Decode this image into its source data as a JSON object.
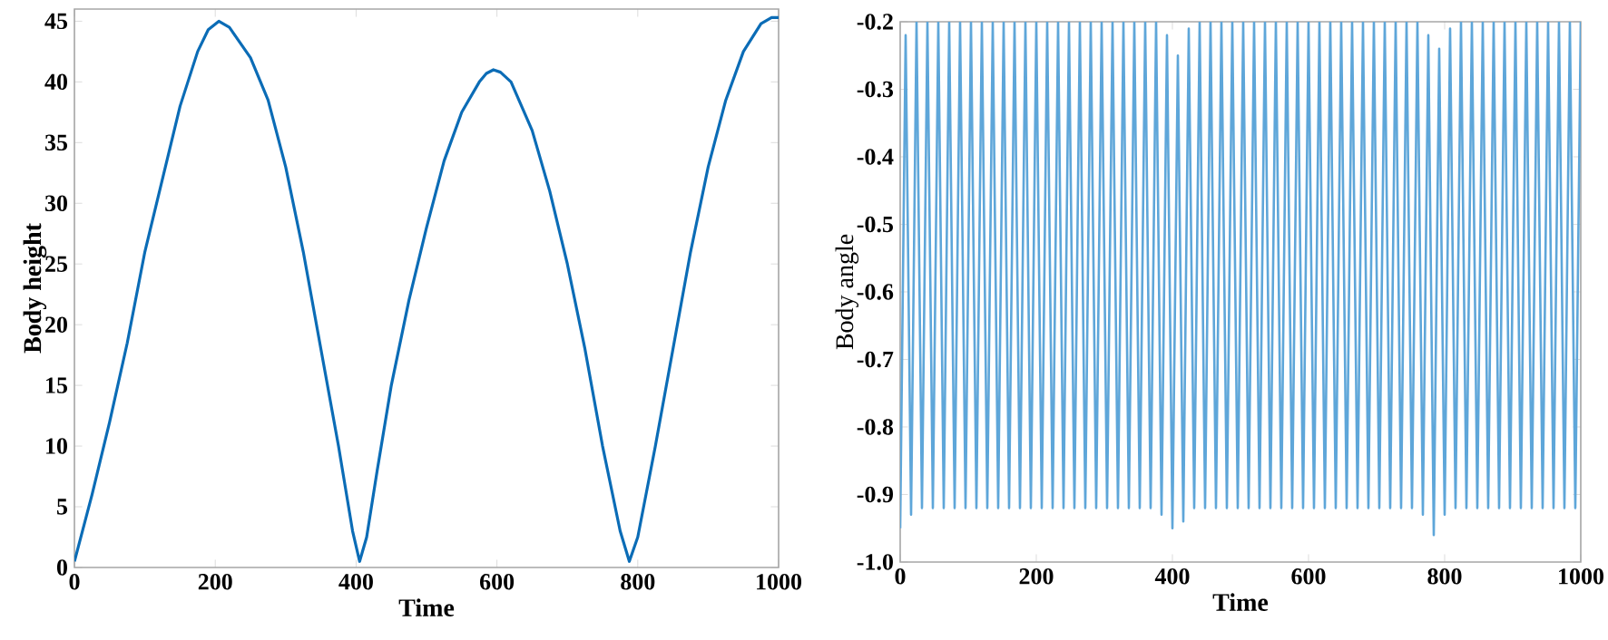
{
  "chart_data": [
    {
      "type": "line",
      "xlabel": "Time",
      "ylabel": "Body height",
      "color": "#0b6cb6",
      "grid": false,
      "marker": "none",
      "line_style": "solid",
      "xlim": [
        0,
        1000
      ],
      "ylim": [
        0,
        46
      ],
      "xticks": [
        0,
        200,
        400,
        600,
        800,
        1000
      ],
      "yticks": [
        0,
        5,
        10,
        15,
        20,
        25,
        30,
        35,
        40,
        45
      ],
      "x": [
        0,
        25,
        50,
        75,
        100,
        125,
        150,
        175,
        190,
        205,
        220,
        250,
        275,
        300,
        325,
        350,
        375,
        395,
        405,
        415,
        430,
        450,
        475,
        500,
        525,
        550,
        575,
        585,
        595,
        605,
        620,
        650,
        675,
        700,
        725,
        750,
        775,
        788,
        800,
        825,
        850,
        875,
        900,
        925,
        950,
        975,
        990,
        1000
      ],
      "values": [
        0.5,
        6,
        12,
        18.5,
        26,
        32,
        38,
        42.5,
        44.3,
        45,
        44.5,
        42,
        38.5,
        33,
        26,
        18,
        10,
        3,
        0.5,
        2.5,
        8,
        15,
        22,
        28,
        33.5,
        37.5,
        40,
        40.7,
        41,
        40.8,
        40,
        36,
        31,
        25,
        18,
        10,
        3,
        0.5,
        2.5,
        10,
        18,
        26,
        33,
        38.5,
        42.5,
        44.8,
        45.3,
        45.3
      ]
    },
    {
      "type": "line",
      "xlabel": "Time",
      "ylabel": "Body angle",
      "color": "#5ea6d9",
      "grid": false,
      "marker": "none",
      "line_style": "solid",
      "xlim": [
        0,
        1000
      ],
      "ylim": [
        -1.0,
        -0.2
      ],
      "xticks": [
        0,
        200,
        400,
        600,
        800,
        1000
      ],
      "yticks": [
        {
          "value": -1.0,
          "label": "-1.0"
        },
        -0.9,
        -0.8,
        -0.7,
        -0.6,
        -0.5,
        -0.4,
        -0.3,
        -0.2
      ],
      "x": [
        0,
        8,
        16,
        24,
        32,
        40,
        48,
        56,
        64,
        72,
        80,
        88,
        96,
        104,
        112,
        120,
        128,
        136,
        144,
        152,
        160,
        168,
        176,
        184,
        192,
        200,
        208,
        216,
        224,
        232,
        240,
        248,
        256,
        264,
        272,
        280,
        288,
        296,
        304,
        312,
        320,
        328,
        336,
        344,
        352,
        360,
        368,
        376,
        384,
        392,
        400,
        408,
        416,
        424,
        432,
        440,
        448,
        456,
        464,
        472,
        480,
        488,
        496,
        504,
        512,
        520,
        528,
        536,
        544,
        552,
        560,
        568,
        576,
        584,
        592,
        600,
        608,
        616,
        624,
        632,
        640,
        648,
        656,
        664,
        672,
        680,
        688,
        696,
        704,
        712,
        720,
        728,
        736,
        744,
        752,
        760,
        768,
        776,
        784,
        792,
        800,
        808,
        816,
        824,
        832,
        840,
        848,
        856,
        864,
        872,
        880,
        888,
        896,
        904,
        912,
        920,
        928,
        936,
        944,
        952,
        960,
        968,
        976,
        984,
        992,
        1000
      ],
      "values": [
        -0.95,
        -0.22,
        -0.93,
        -0.2,
        -0.92,
        -0.2,
        -0.92,
        -0.2,
        -0.92,
        -0.2,
        -0.92,
        -0.2,
        -0.92,
        -0.2,
        -0.92,
        -0.2,
        -0.92,
        -0.2,
        -0.92,
        -0.2,
        -0.92,
        -0.2,
        -0.92,
        -0.2,
        -0.92,
        -0.2,
        -0.92,
        -0.2,
        -0.92,
        -0.2,
        -0.92,
        -0.2,
        -0.92,
        -0.2,
        -0.92,
        -0.2,
        -0.92,
        -0.2,
        -0.92,
        -0.2,
        -0.92,
        -0.2,
        -0.92,
        -0.2,
        -0.92,
        -0.2,
        -0.92,
        -0.2,
        -0.93,
        -0.22,
        -0.95,
        -0.25,
        -0.94,
        -0.21,
        -0.92,
        -0.2,
        -0.92,
        -0.2,
        -0.92,
        -0.2,
        -0.92,
        -0.2,
        -0.92,
        -0.2,
        -0.92,
        -0.2,
        -0.92,
        -0.2,
        -0.92,
        -0.2,
        -0.92,
        -0.2,
        -0.92,
        -0.2,
        -0.92,
        -0.2,
        -0.92,
        -0.2,
        -0.92,
        -0.2,
        -0.92,
        -0.2,
        -0.92,
        -0.2,
        -0.92,
        -0.2,
        -0.92,
        -0.2,
        -0.92,
        -0.2,
        -0.92,
        -0.2,
        -0.92,
        -0.2,
        -0.92,
        -0.2,
        -0.93,
        -0.22,
        -0.96,
        -0.24,
        -0.93,
        -0.21,
        -0.92,
        -0.2,
        -0.92,
        -0.2,
        -0.92,
        -0.2,
        -0.92,
        -0.2,
        -0.92,
        -0.2,
        -0.92,
        -0.2,
        -0.92,
        -0.2,
        -0.92,
        -0.2,
        -0.92,
        -0.2,
        -0.92,
        -0.2,
        -0.92,
        -0.2,
        -0.92,
        -0.2
      ]
    }
  ]
}
